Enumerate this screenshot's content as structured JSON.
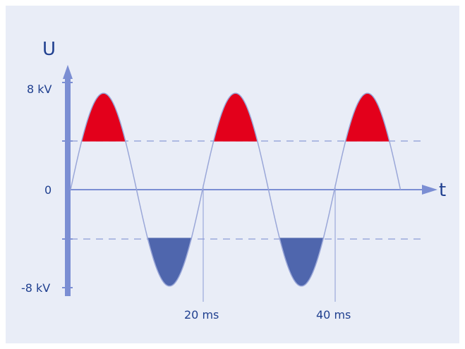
{
  "diagram": {
    "y_axis_label": "U",
    "x_axis_label": "t",
    "y_tick_labels": {
      "top": "8 kV",
      "zero": "0",
      "bottom": "-8 kV"
    },
    "x_tick_labels": [
      "20 ms",
      "40 ms"
    ]
  },
  "chart_data": {
    "type": "line",
    "series": [
      {
        "shape": "sine",
        "amplitude_kv": 8,
        "period_ms": 20,
        "x_range_ms": [
          0,
          50
        ]
      }
    ],
    "threshold_levels_kv": [
      4,
      -4
    ],
    "ylim": [
      -8,
      8
    ],
    "x_ticks_ms": [
      20,
      40
    ]
  },
  "colors": {
    "background": "#e9edf7",
    "axis": "#7b8ed3",
    "curve": "#9aa7d8",
    "positive_fill": "#e3001b",
    "negative_fill": "#4f66ad",
    "text": "#1f3f8f"
  }
}
